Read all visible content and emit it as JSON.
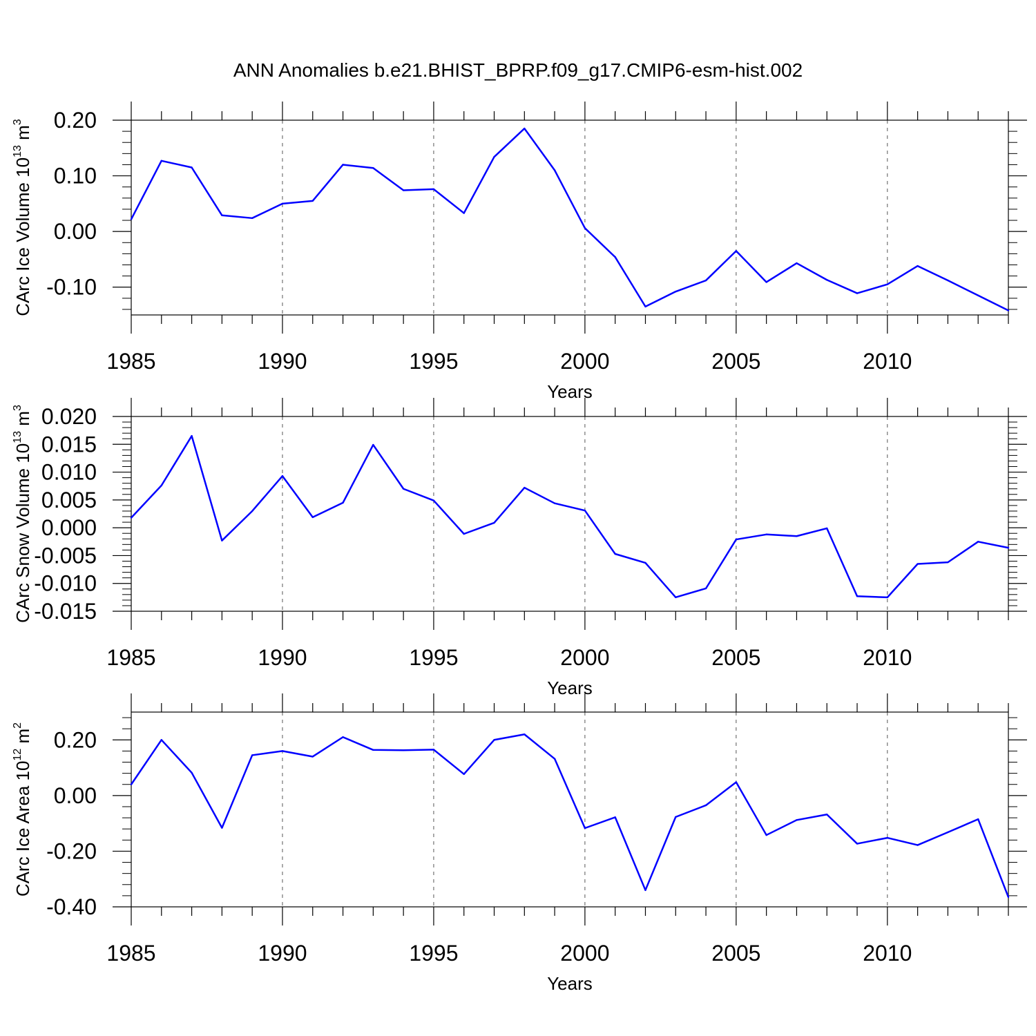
{
  "title": "ANN Anomalies b.e21.BHIST_BPRP.f09_g17.CMIP6-esm-hist.002",
  "colors": {
    "line": "#0000ff",
    "axis": "#000000",
    "grid": "#555555"
  },
  "chart_data": [
    {
      "type": "line",
      "name": "ice-volume",
      "ylabel_main": "CArc Ice Volume 10",
      "ylabel_exp": "13",
      "ylabel_unit": " m",
      "ylabel_unit_exp": "3",
      "xlabel": "Years",
      "xlim": [
        1985,
        2014
      ],
      "ylim": [
        -0.15,
        0.2
      ],
      "yticks": [
        0.2,
        0.1,
        0.0,
        -0.1
      ],
      "ytick_labels": [
        "0.20",
        "0.10",
        "0.00",
        "-0.10"
      ],
      "xticks": [
        1985,
        1990,
        1995,
        2000,
        2005,
        2010
      ],
      "xtick_labels": [
        "1985",
        "1990",
        "1995",
        "2000",
        "2005",
        "2010"
      ],
      "x": [
        1985,
        1986,
        1987,
        1988,
        1989,
        1990,
        1991,
        1992,
        1993,
        1994,
        1995,
        1996,
        1997,
        1998,
        1999,
        2000,
        2001,
        2002,
        2003,
        2004,
        2005,
        2006,
        2007,
        2008,
        2009,
        2010,
        2011,
        2012,
        2013,
        2014
      ],
      "values": [
        0.022,
        0.127,
        0.115,
        0.029,
        0.024,
        0.05,
        0.055,
        0.12,
        0.114,
        0.074,
        0.076,
        0.033,
        0.134,
        0.185,
        0.11,
        0.006,
        -0.046,
        -0.135,
        -0.108,
        -0.088,
        -0.035,
        -0.091,
        -0.057,
        -0.087,
        -0.111,
        -0.095,
        -0.062,
        -0.088,
        -0.115,
        -0.142
      ]
    },
    {
      "type": "line",
      "name": "snow-volume",
      "ylabel_main": "CArc Snow Volume 10",
      "ylabel_exp": "13",
      "ylabel_unit": " m",
      "ylabel_unit_exp": "3",
      "xlabel": "Years",
      "xlim": [
        1985,
        2014
      ],
      "ylim": [
        -0.015,
        0.02
      ],
      "yticks": [
        0.02,
        0.015,
        0.01,
        0.005,
        0.0,
        -0.005,
        -0.01,
        -0.015
      ],
      "ytick_labels": [
        "0.020",
        "0.015",
        "0.010",
        "0.005",
        "0.000",
        "-0.005",
        "-0.010",
        "-0.015"
      ],
      "xticks": [
        1985,
        1990,
        1995,
        2000,
        2005,
        2010
      ],
      "xtick_labels": [
        "1985",
        "1990",
        "1995",
        "2000",
        "2005",
        "2010"
      ],
      "x": [
        1985,
        1986,
        1987,
        1988,
        1989,
        1990,
        1991,
        1992,
        1993,
        1994,
        1995,
        1996,
        1997,
        1998,
        1999,
        2000,
        2001,
        2002,
        2003,
        2004,
        2005,
        2006,
        2007,
        2008,
        2009,
        2010,
        2011,
        2012,
        2013,
        2014
      ],
      "values": [
        0.0018,
        0.0076,
        0.0165,
        -0.0023,
        0.003,
        0.0093,
        0.0019,
        0.0045,
        0.0149,
        0.007,
        0.0049,
        -0.0011,
        0.0009,
        0.0072,
        0.0044,
        0.0031,
        -0.0047,
        -0.0063,
        -0.0125,
        -0.0109,
        -0.0021,
        -0.0012,
        -0.0015,
        -0.0001,
        -0.0123,
        -0.0125,
        -0.0065,
        -0.0062,
        -0.0025,
        -0.0036
      ]
    },
    {
      "type": "line",
      "name": "ice-area",
      "ylabel_main": "CArc Ice Area 10",
      "ylabel_exp": "12",
      "ylabel_unit": " m",
      "ylabel_unit_exp": "2",
      "xlabel": "Years",
      "xlim": [
        1985,
        2014
      ],
      "ylim": [
        -0.4,
        0.3
      ],
      "yticks": [
        0.2,
        0.0,
        -0.2,
        -0.4
      ],
      "ytick_labels": [
        "0.20",
        "0.00",
        "-0.20",
        "-0.40"
      ],
      "xticks": [
        1985,
        1990,
        1995,
        2000,
        2005,
        2010
      ],
      "xtick_labels": [
        "1985",
        "1990",
        "1995",
        "2000",
        "2005",
        "2010"
      ],
      "x": [
        1985,
        1986,
        1987,
        1988,
        1989,
        1990,
        1991,
        1992,
        1993,
        1994,
        1995,
        1996,
        1997,
        1998,
        1999,
        2000,
        2001,
        2002,
        2003,
        2004,
        2005,
        2006,
        2007,
        2008,
        2009,
        2010,
        2011,
        2012,
        2013,
        2014
      ],
      "values": [
        0.04,
        0.2,
        0.082,
        -0.116,
        0.145,
        0.16,
        0.14,
        0.21,
        0.164,
        0.163,
        0.165,
        0.077,
        0.2,
        0.22,
        0.132,
        -0.117,
        -0.078,
        -0.34,
        -0.077,
        -0.035,
        0.048,
        -0.142,
        -0.088,
        -0.068,
        -0.173,
        -0.152,
        -0.178,
        -0.132,
        -0.085,
        -0.365
      ]
    }
  ]
}
